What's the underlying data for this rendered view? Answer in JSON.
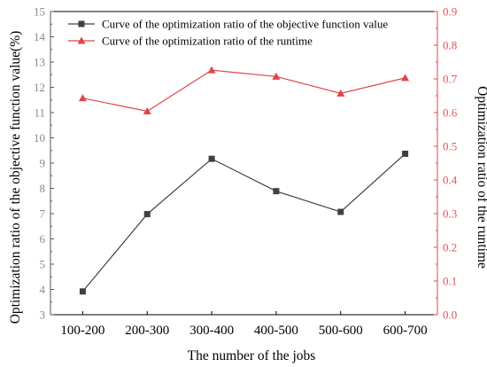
{
  "chart_data": {
    "type": "line",
    "categories": [
      "100-200",
      "200-300",
      "300-400",
      "400-500",
      "500-600",
      "600-700"
    ],
    "xlabel": "The number of the jobs",
    "ylabel_left": "Optimization ratio of the objective function value(%)",
    "ylabel_right": "Optimization ratio of the runtime",
    "ylim_left": [
      3,
      15
    ],
    "yticks_left": [
      "3",
      "4",
      "5",
      "6",
      "7",
      "8",
      "9",
      "10",
      "11",
      "12",
      "13",
      "14",
      "15"
    ],
    "ylim_right": [
      0,
      0.9
    ],
    "yticks_right": [
      "0.0",
      "0.1",
      "0.2",
      "0.3",
      "0.4",
      "0.5",
      "0.6",
      "0.7",
      "0.8",
      "0.9"
    ],
    "grid": false,
    "legend_position": "top-left",
    "series": [
      {
        "name": "Curve of the optimization ratio of the objective function value",
        "axis": "left",
        "marker": "square",
        "color": "#404040",
        "values": [
          3.92,
          6.98,
          9.17,
          7.89,
          7.07,
          9.37
        ]
      },
      {
        "name": "Curve of the optimization ratio of the runtime",
        "axis": "right",
        "marker": "triangle",
        "color": "#e0454a",
        "values": [
          0.643,
          0.604,
          0.726,
          0.707,
          0.657,
          0.703
        ]
      }
    ]
  },
  "colors": {
    "left_axis": "#555555",
    "right_axis": "#e0454a"
  }
}
